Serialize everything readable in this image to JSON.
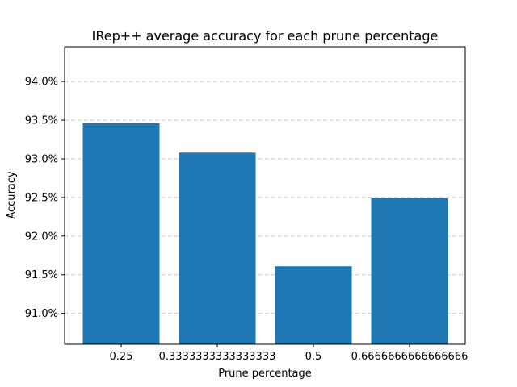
{
  "chart_data": {
    "type": "bar",
    "title": "IRep++ average accuracy for each prune percentage",
    "xlabel": "Prune percentage",
    "ylabel": "Accuracy",
    "categories": [
      "0.25",
      "0.3333333333333333",
      "0.5",
      "0.6666666666666666"
    ],
    "values": [
      93.46,
      93.08,
      91.61,
      92.49
    ],
    "ylim": [
      90.6,
      94.45
    ],
    "yticks": [
      91.0,
      91.5,
      92.0,
      92.5,
      93.0,
      93.5,
      94.0
    ],
    "ytick_labels": [
      "91.0%",
      "91.5%",
      "92.0%",
      "92.5%",
      "93.0%",
      "93.5%",
      "94.0%"
    ],
    "grid": "y-axis dashed",
    "bar_color": "#1f77b4"
  }
}
